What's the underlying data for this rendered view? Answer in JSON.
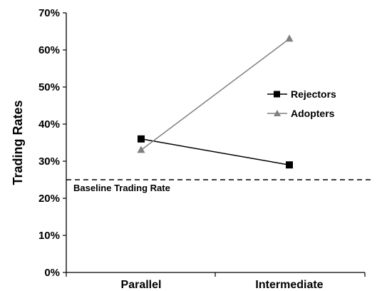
{
  "chart_data": {
    "type": "line",
    "title": "",
    "xlabel": "",
    "ylabel": "Trading Rates",
    "categories": [
      "Parallel",
      "Intermediate"
    ],
    "ylim": [
      0,
      70
    ],
    "yticks": [
      0,
      10,
      20,
      30,
      40,
      50,
      60,
      70
    ],
    "ytick_labels": [
      "0%",
      "10%",
      "20%",
      "30%",
      "40%",
      "50%",
      "60%",
      "70%"
    ],
    "grid": false,
    "legend_position": "right",
    "series": [
      {
        "name": "Rejectors",
        "values": [
          36,
          29
        ],
        "marker": "square",
        "color": "#000000"
      },
      {
        "name": "Adopters",
        "values": [
          33,
          63
        ],
        "marker": "triangle",
        "color": "#808080"
      }
    ],
    "reference_lines": [
      {
        "label": "Baseline Trading Rate",
        "value": 25,
        "style": "dashed",
        "color": "#000000"
      }
    ]
  }
}
